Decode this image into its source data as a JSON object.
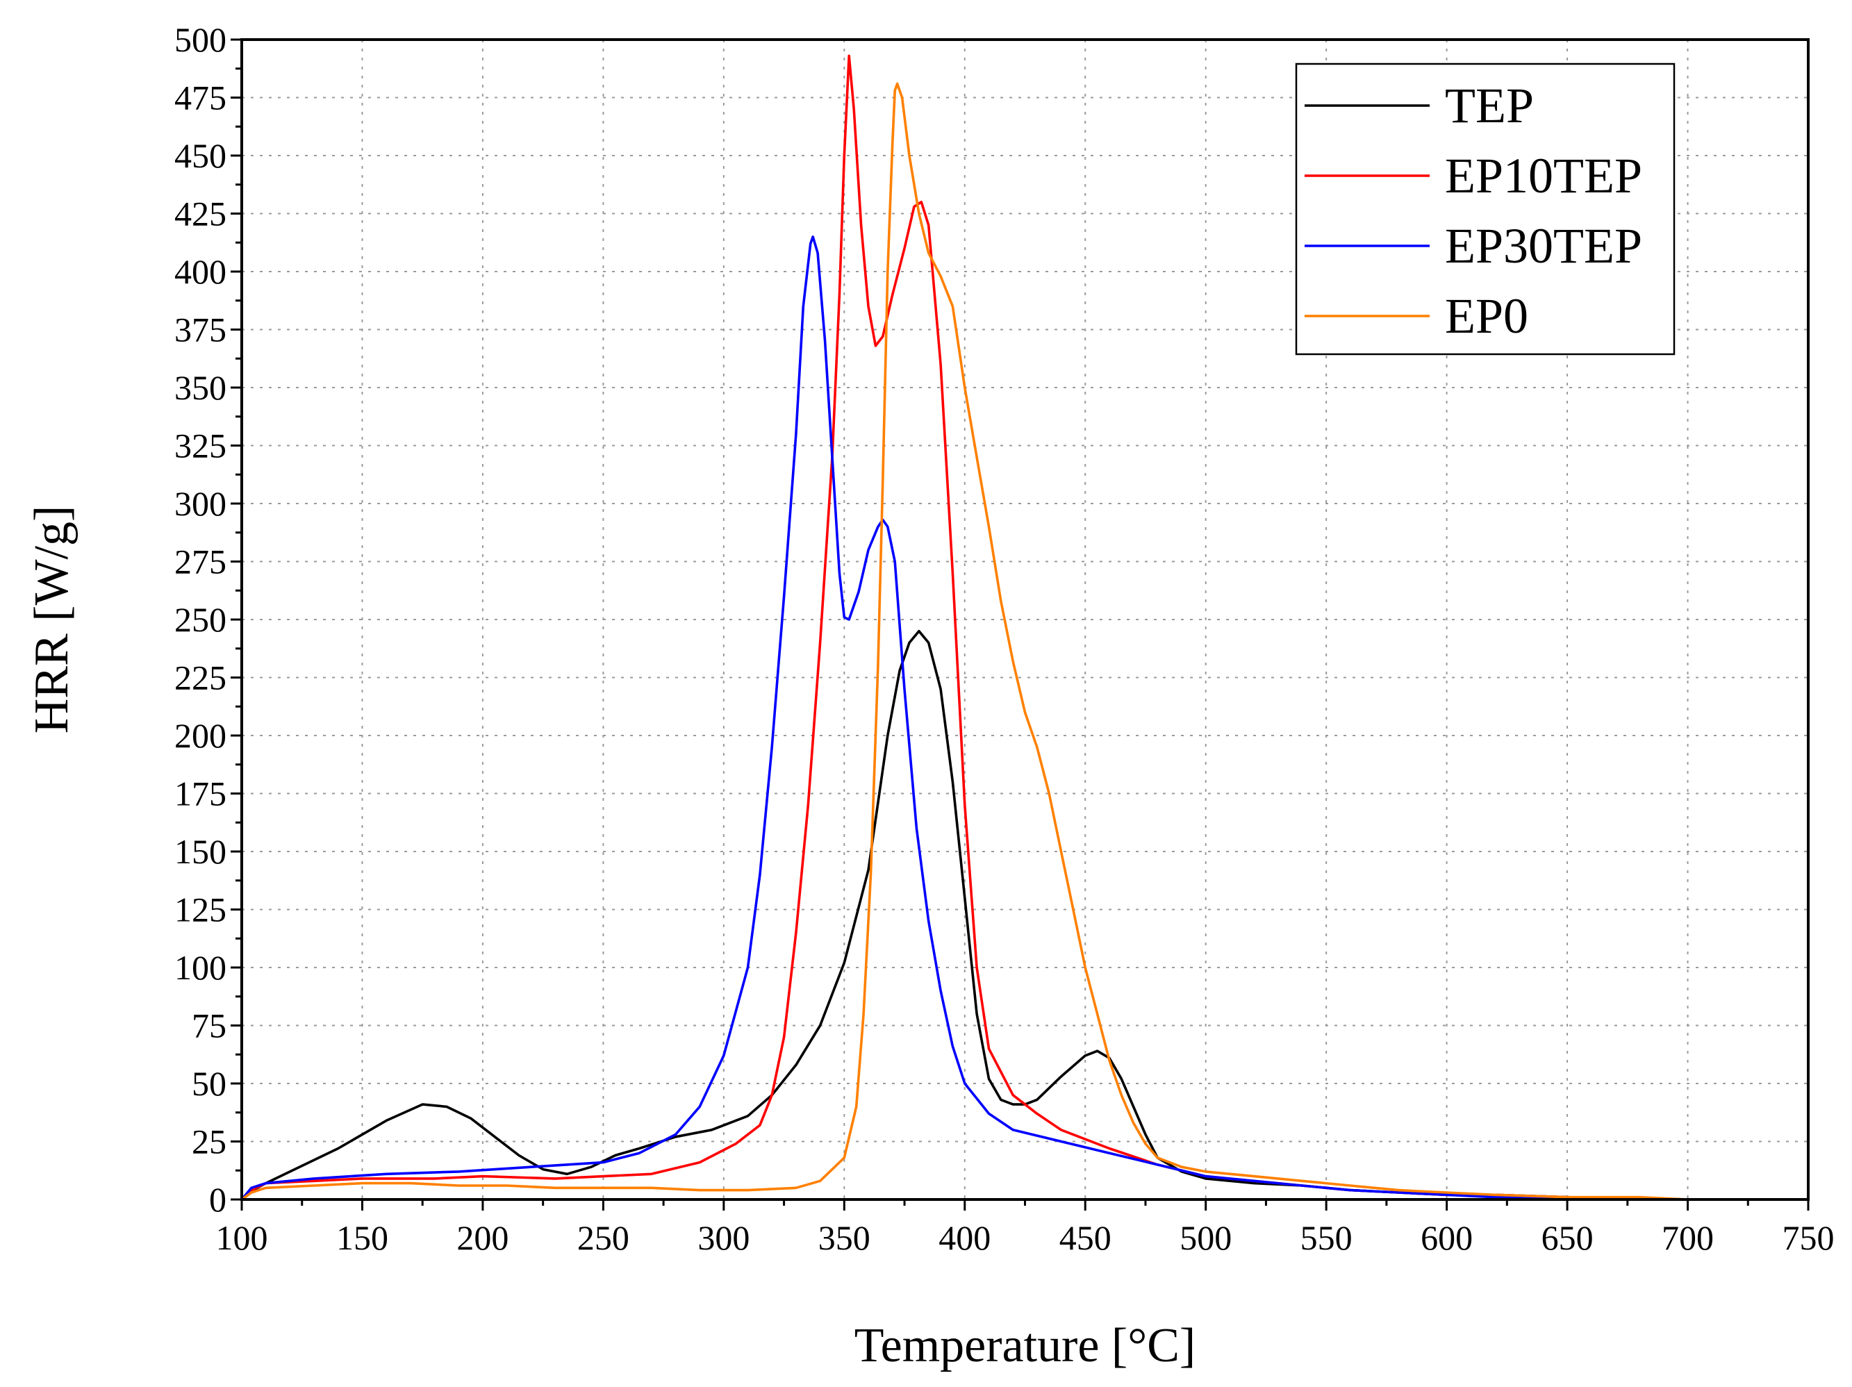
{
  "chart_data": {
    "type": "line",
    "title": "",
    "xlabel": "Temperature [°C]",
    "ylabel": "HRR [W/g]",
    "xlim": [
      100,
      750
    ],
    "ylim": [
      0,
      500
    ],
    "x_ticks": [
      100,
      150,
      200,
      250,
      300,
      350,
      400,
      450,
      500,
      550,
      600,
      650,
      700,
      750
    ],
    "y_ticks": [
      0,
      25,
      50,
      75,
      100,
      125,
      150,
      175,
      200,
      225,
      250,
      275,
      300,
      325,
      350,
      375,
      400,
      425,
      450,
      475,
      500
    ],
    "grid": true,
    "legend_position": "top-right",
    "series": [
      {
        "name": "TEP",
        "color": "#000000",
        "points": [
          [
            100,
            0
          ],
          [
            103,
            3
          ],
          [
            110,
            7
          ],
          [
            120,
            12
          ],
          [
            140,
            22
          ],
          [
            160,
            34
          ],
          [
            175,
            41
          ],
          [
            185,
            40
          ],
          [
            195,
            35
          ],
          [
            205,
            27
          ],
          [
            215,
            19
          ],
          [
            225,
            13
          ],
          [
            235,
            11
          ],
          [
            245,
            14
          ],
          [
            255,
            19
          ],
          [
            265,
            22
          ],
          [
            280,
            27
          ],
          [
            295,
            30
          ],
          [
            310,
            36
          ],
          [
            320,
            45
          ],
          [
            330,
            58
          ],
          [
            340,
            75
          ],
          [
            350,
            102
          ],
          [
            360,
            142
          ],
          [
            368,
            200
          ],
          [
            373,
            228
          ],
          [
            377,
            240
          ],
          [
            381,
            245
          ],
          [
            385,
            240
          ],
          [
            390,
            220
          ],
          [
            395,
            180
          ],
          [
            400,
            130
          ],
          [
            405,
            80
          ],
          [
            410,
            52
          ],
          [
            415,
            43
          ],
          [
            420,
            41
          ],
          [
            425,
            41
          ],
          [
            430,
            43
          ],
          [
            440,
            53
          ],
          [
            450,
            62
          ],
          [
            455,
            64
          ],
          [
            460,
            61
          ],
          [
            465,
            52
          ],
          [
            470,
            40
          ],
          [
            475,
            28
          ],
          [
            480,
            18
          ],
          [
            490,
            12
          ],
          [
            500,
            9
          ],
          [
            520,
            7
          ],
          [
            540,
            6
          ],
          [
            560,
            4
          ],
          [
            580,
            3
          ],
          [
            600,
            2
          ],
          [
            620,
            2
          ],
          [
            650,
            1
          ],
          [
            680,
            0
          ],
          [
            700,
            0
          ],
          [
            740,
            0
          ]
        ]
      },
      {
        "name": "EP10TEP",
        "color": "#ff0000",
        "points": [
          [
            100,
            0
          ],
          [
            104,
            4
          ],
          [
            110,
            7
          ],
          [
            130,
            8
          ],
          [
            150,
            9
          ],
          [
            180,
            9
          ],
          [
            200,
            10
          ],
          [
            230,
            9
          ],
          [
            250,
            10
          ],
          [
            270,
            11
          ],
          [
            290,
            16
          ],
          [
            305,
            24
          ],
          [
            315,
            32
          ],
          [
            320,
            45
          ],
          [
            325,
            70
          ],
          [
            330,
            115
          ],
          [
            335,
            170
          ],
          [
            340,
            240
          ],
          [
            345,
            320
          ],
          [
            348,
            390
          ],
          [
            350,
            450
          ],
          [
            352,
            493
          ],
          [
            354,
            470
          ],
          [
            357,
            420
          ],
          [
            360,
            385
          ],
          [
            363,
            368
          ],
          [
            366,
            372
          ],
          [
            370,
            390
          ],
          [
            375,
            410
          ],
          [
            379,
            428
          ],
          [
            382,
            430
          ],
          [
            385,
            420
          ],
          [
            390,
            360
          ],
          [
            395,
            270
          ],
          [
            400,
            170
          ],
          [
            405,
            100
          ],
          [
            410,
            65
          ],
          [
            420,
            45
          ],
          [
            430,
            37
          ],
          [
            440,
            30
          ],
          [
            460,
            22
          ],
          [
            480,
            15
          ],
          [
            500,
            10
          ],
          [
            520,
            8
          ],
          [
            540,
            6
          ],
          [
            560,
            4
          ],
          [
            580,
            3
          ],
          [
            600,
            2
          ],
          [
            620,
            2
          ],
          [
            650,
            1
          ],
          [
            680,
            0
          ],
          [
            700,
            0
          ],
          [
            740,
            0
          ]
        ]
      },
      {
        "name": "EP30TEP",
        "color": "#0000ff",
        "points": [
          [
            100,
            0
          ],
          [
            104,
            5
          ],
          [
            110,
            7
          ],
          [
            130,
            9
          ],
          [
            160,
            11
          ],
          [
            190,
            12
          ],
          [
            220,
            14
          ],
          [
            250,
            16
          ],
          [
            265,
            20
          ],
          [
            280,
            28
          ],
          [
            290,
            40
          ],
          [
            300,
            62
          ],
          [
            310,
            100
          ],
          [
            315,
            140
          ],
          [
            320,
            195
          ],
          [
            325,
            260
          ],
          [
            330,
            330
          ],
          [
            333,
            385
          ],
          [
            336,
            412
          ],
          [
            337,
            415
          ],
          [
            339,
            408
          ],
          [
            342,
            370
          ],
          [
            345,
            320
          ],
          [
            348,
            270
          ],
          [
            350,
            251
          ],
          [
            352,
            250
          ],
          [
            356,
            262
          ],
          [
            360,
            280
          ],
          [
            364,
            290
          ],
          [
            366,
            293
          ],
          [
            368,
            290
          ],
          [
            371,
            275
          ],
          [
            375,
            220
          ],
          [
            380,
            160
          ],
          [
            385,
            120
          ],
          [
            390,
            90
          ],
          [
            395,
            66
          ],
          [
            400,
            50
          ],
          [
            410,
            37
          ],
          [
            420,
            30
          ],
          [
            440,
            25
          ],
          [
            460,
            20
          ],
          [
            480,
            15
          ],
          [
            500,
            10
          ],
          [
            520,
            8
          ],
          [
            540,
            6
          ],
          [
            560,
            4
          ],
          [
            580,
            3
          ],
          [
            600,
            2
          ],
          [
            620,
            1
          ],
          [
            650,
            1
          ],
          [
            680,
            0
          ],
          [
            700,
            0
          ],
          [
            740,
            0
          ]
        ]
      },
      {
        "name": "EP0",
        "color": "#ff8000",
        "points": [
          [
            100,
            0
          ],
          [
            104,
            3
          ],
          [
            110,
            5
          ],
          [
            130,
            6
          ],
          [
            150,
            7
          ],
          [
            170,
            7
          ],
          [
            190,
            6
          ],
          [
            210,
            6
          ],
          [
            230,
            5
          ],
          [
            250,
            5
          ],
          [
            270,
            5
          ],
          [
            290,
            4
          ],
          [
            310,
            4
          ],
          [
            330,
            5
          ],
          [
            340,
            8
          ],
          [
            350,
            18
          ],
          [
            355,
            40
          ],
          [
            358,
            80
          ],
          [
            361,
            140
          ],
          [
            364,
            230
          ],
          [
            366,
            310
          ],
          [
            368,
            400
          ],
          [
            370,
            455
          ],
          [
            371,
            478
          ],
          [
            372,
            481
          ],
          [
            374,
            475
          ],
          [
            377,
            450
          ],
          [
            381,
            425
          ],
          [
            385,
            408
          ],
          [
            390,
            398
          ],
          [
            395,
            385
          ],
          [
            400,
            350
          ],
          [
            405,
            320
          ],
          [
            410,
            290
          ],
          [
            415,
            258
          ],
          [
            420,
            232
          ],
          [
            425,
            210
          ],
          [
            430,
            195
          ],
          [
            435,
            175
          ],
          [
            440,
            150
          ],
          [
            445,
            125
          ],
          [
            450,
            100
          ],
          [
            455,
            80
          ],
          [
            460,
            60
          ],
          [
            465,
            45
          ],
          [
            470,
            33
          ],
          [
            475,
            24
          ],
          [
            480,
            18
          ],
          [
            490,
            14
          ],
          [
            500,
            12
          ],
          [
            520,
            10
          ],
          [
            540,
            8
          ],
          [
            560,
            6
          ],
          [
            580,
            4
          ],
          [
            600,
            3
          ],
          [
            620,
            2
          ],
          [
            650,
            1
          ],
          [
            680,
            1
          ],
          [
            700,
            0
          ],
          [
            740,
            0
          ]
        ]
      }
    ]
  }
}
